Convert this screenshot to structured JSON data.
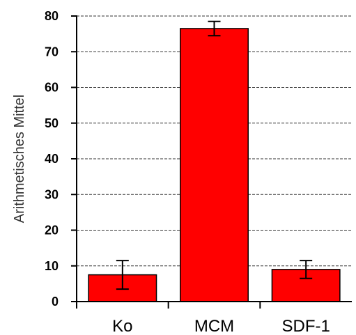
{
  "chart_data": {
    "type": "bar",
    "title": "",
    "xlabel": "",
    "ylabel": "Arithmetisches Mittel",
    "categories": [
      "Ko",
      "MCM",
      "SDF-1"
    ],
    "series": [
      {
        "values": [
          7.5,
          76.5,
          9.0
        ],
        "errors": [
          4.0,
          2.0,
          2.5
        ]
      }
    ],
    "ylim": [
      0,
      80
    ],
    "yticks": [
      0,
      10,
      20,
      30,
      40,
      50,
      60,
      70,
      80
    ],
    "grid": true,
    "bar_color": "#ff0000",
    "legend": "none"
  }
}
